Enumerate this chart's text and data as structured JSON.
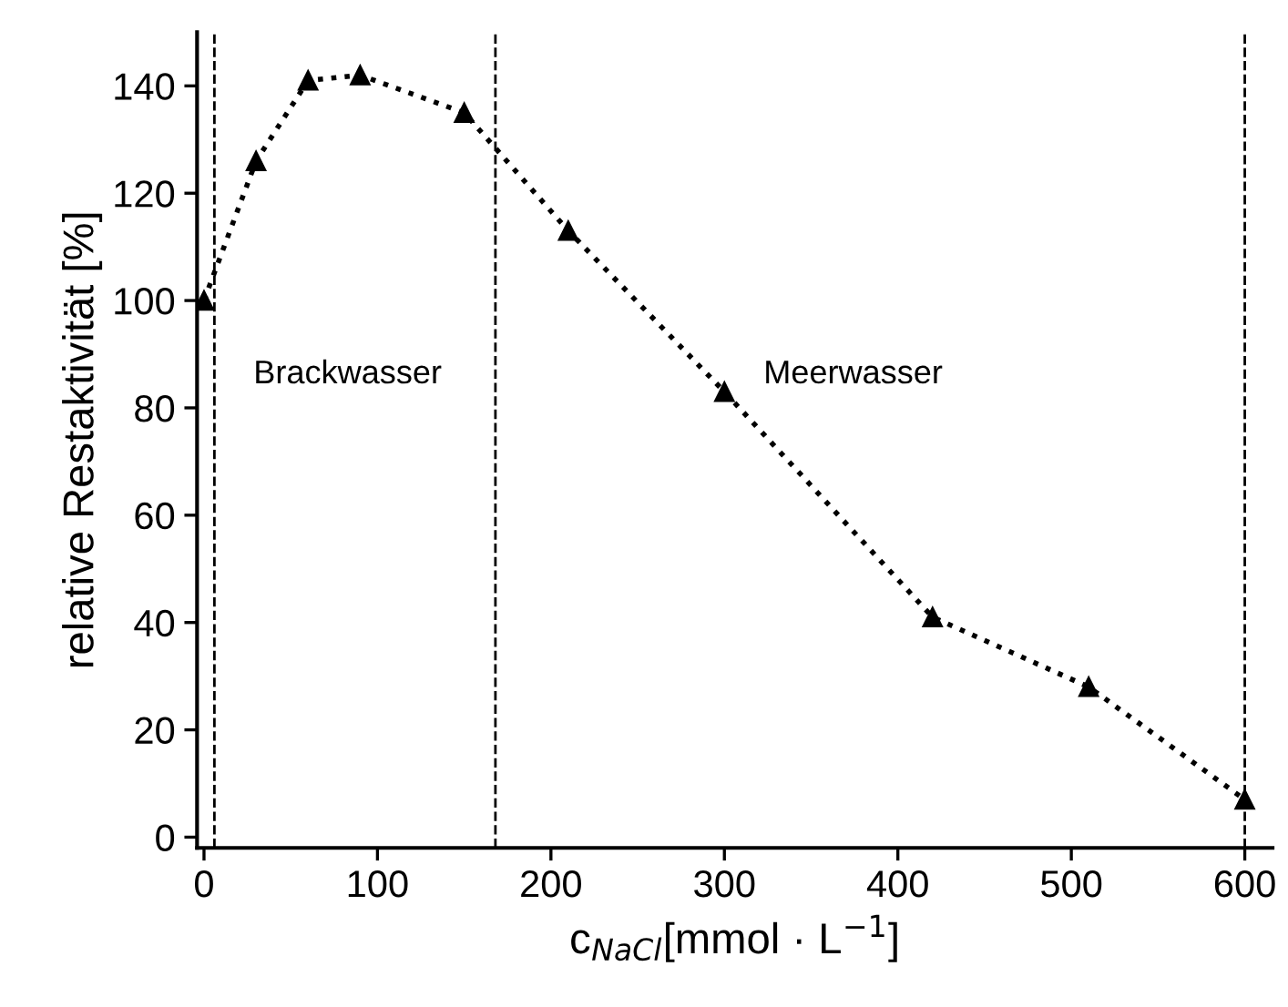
{
  "chart_data": {
    "type": "line",
    "xlabel": "c$_{NaCl}$[mmol · L$^{−1}$]",
    "ylabel": "relative Restaktivität [%]",
    "series": [
      {
        "color": "#000000",
        "x": [
          0,
          30,
          60,
          90,
          150,
          210,
          300,
          420,
          510,
          600
        ],
        "values": [
          100,
          126,
          141,
          142,
          135,
          113,
          83,
          41,
          28,
          7
        ]
      }
    ],
    "marker": "triangle",
    "line_style": "dotted",
    "grid": false,
    "legend": false,
    "xlim": [
      -4,
      616
    ],
    "xticks": [
      0,
      100,
      200,
      300,
      400,
      500,
      600
    ],
    "ylim": [
      -2,
      150
    ],
    "yticks": [
      0,
      20,
      40,
      60,
      80,
      100,
      120,
      140
    ],
    "ref_lines": [
      {
        "axis": "x",
        "value": 6,
        "line_style": "dashed",
        "color": "#000000"
      },
      {
        "axis": "x",
        "value": 168,
        "line_style": "dashed",
        "color": "#000000"
      },
      {
        "axis": "x",
        "value": 600,
        "line_style": "dashed",
        "color": "#000000"
      }
    ],
    "annotations": [
      "Brackwasser",
      "Meerwasser"
    ]
  }
}
